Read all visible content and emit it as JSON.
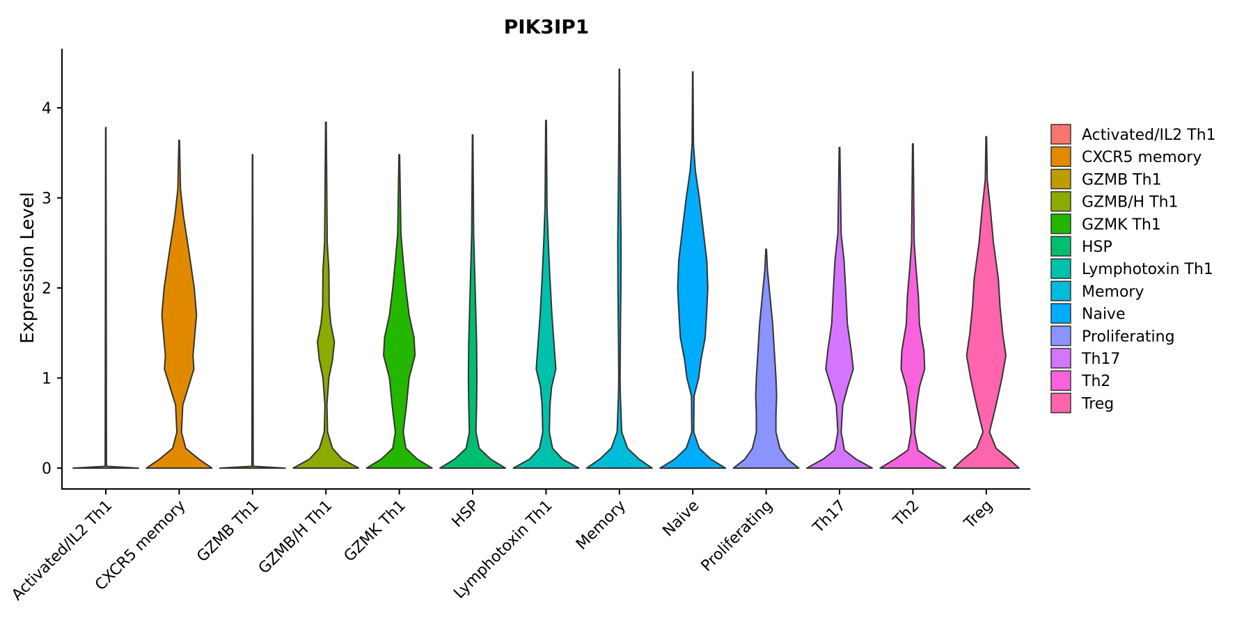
{
  "chart_data": {
    "type": "violin",
    "title": "PIK3IP1",
    "xlabel": "",
    "ylabel": "Expression Level",
    "ylim": [
      -0.22,
      4.7
    ],
    "yticks": [
      "0",
      "1",
      "2",
      "3",
      "4"
    ],
    "grid": false,
    "legend_position": "right",
    "categories": [
      "Activated/IL2 Th1",
      "CXCR5 memory",
      "GZMB Th1",
      "GZMB/H Th1",
      "GZMK Th1",
      "HSP",
      "Lymphotoxin Th1",
      "Memory",
      "Naive",
      "Proliferating",
      "Th17",
      "Th2",
      "Treg"
    ],
    "colors": [
      "#F8766D",
      "#E18A00",
      "#BE9C00",
      "#8CAB00",
      "#24B700",
      "#00BE70",
      "#00C1AB",
      "#00BBDA",
      "#00ACFC",
      "#8B93FF",
      "#D575FE",
      "#F962DD",
      "#FF65AC"
    ],
    "series": [
      {
        "name": "Activated/IL2 Th1",
        "max": 3.78,
        "profile": [
          [
            0,
            1
          ],
          [
            0.02,
            0.02
          ],
          [
            3.78,
            0.006
          ]
        ]
      },
      {
        "name": "CXCR5 memory",
        "max": 3.64,
        "profile": [
          [
            0,
            1
          ],
          [
            0.1,
            0.6
          ],
          [
            0.22,
            0.2
          ],
          [
            0.4,
            0.07
          ],
          [
            0.7,
            0.11
          ],
          [
            0.9,
            0.28
          ],
          [
            1.1,
            0.45
          ],
          [
            1.25,
            0.42
          ],
          [
            1.45,
            0.47
          ],
          [
            1.7,
            0.53
          ],
          [
            2.0,
            0.46
          ],
          [
            2.4,
            0.3
          ],
          [
            2.8,
            0.13
          ],
          [
            3.1,
            0.04
          ],
          [
            3.64,
            0.01
          ]
        ]
      },
      {
        "name": "GZMB Th1",
        "max": 3.48,
        "profile": [
          [
            0,
            1
          ],
          [
            0.02,
            0.02
          ],
          [
            3.48,
            0.006
          ]
        ]
      },
      {
        "name": "GZMB/H Th1",
        "max": 3.84,
        "profile": [
          [
            0,
            1
          ],
          [
            0.1,
            0.5
          ],
          [
            0.22,
            0.2
          ],
          [
            0.4,
            0.05
          ],
          [
            0.7,
            0.03
          ],
          [
            1.0,
            0.09
          ],
          [
            1.2,
            0.2
          ],
          [
            1.4,
            0.26
          ],
          [
            1.6,
            0.15
          ],
          [
            1.8,
            0.1
          ],
          [
            2.2,
            0.09
          ],
          [
            2.5,
            0.04
          ],
          [
            3.84,
            0.01
          ]
        ]
      },
      {
        "name": "GZMK Th1",
        "max": 3.48,
        "profile": [
          [
            0,
            1
          ],
          [
            0.1,
            0.55
          ],
          [
            0.22,
            0.2
          ],
          [
            0.4,
            0.12
          ],
          [
            0.7,
            0.22
          ],
          [
            1.0,
            0.3
          ],
          [
            1.25,
            0.48
          ],
          [
            1.45,
            0.45
          ],
          [
            1.7,
            0.3
          ],
          [
            2.0,
            0.2
          ],
          [
            2.3,
            0.12
          ],
          [
            2.6,
            0.05
          ],
          [
            3.48,
            0.01
          ]
        ]
      },
      {
        "name": "HSP",
        "max": 3.7,
        "profile": [
          [
            0,
            1
          ],
          [
            0.1,
            0.55
          ],
          [
            0.22,
            0.2
          ],
          [
            0.4,
            0.1
          ],
          [
            0.7,
            0.12
          ],
          [
            1.0,
            0.13
          ],
          [
            1.4,
            0.12
          ],
          [
            1.8,
            0.09
          ],
          [
            2.2,
            0.06
          ],
          [
            2.6,
            0.03
          ],
          [
            3.7,
            0.008
          ]
        ]
      },
      {
        "name": "Lymphotoxin Th1",
        "max": 3.86,
        "profile": [
          [
            0,
            1
          ],
          [
            0.1,
            0.5
          ],
          [
            0.22,
            0.2
          ],
          [
            0.4,
            0.1
          ],
          [
            0.7,
            0.12
          ],
          [
            0.9,
            0.17
          ],
          [
            1.1,
            0.3
          ],
          [
            1.35,
            0.25
          ],
          [
            1.7,
            0.18
          ],
          [
            2.1,
            0.12
          ],
          [
            2.5,
            0.07
          ],
          [
            2.9,
            0.03
          ],
          [
            3.86,
            0.01
          ]
        ]
      },
      {
        "name": "Memory",
        "max": 4.43,
        "profile": [
          [
            0,
            1
          ],
          [
            0.1,
            0.6
          ],
          [
            0.22,
            0.25
          ],
          [
            0.4,
            0.07
          ],
          [
            0.8,
            0.03
          ],
          [
            1.0,
            0.02
          ],
          [
            1.5,
            0.03
          ],
          [
            2.0,
            0.045
          ],
          [
            2.5,
            0.05
          ],
          [
            3.0,
            0.035
          ],
          [
            3.6,
            0.02
          ],
          [
            4.43,
            0.006
          ]
        ]
      },
      {
        "name": "Naive",
        "max": 4.4,
        "profile": [
          [
            0,
            1
          ],
          [
            0.1,
            0.55
          ],
          [
            0.22,
            0.2
          ],
          [
            0.4,
            0.03
          ],
          [
            0.8,
            0.04
          ],
          [
            1.0,
            0.18
          ],
          [
            1.2,
            0.25
          ],
          [
            1.45,
            0.38
          ],
          [
            1.7,
            0.42
          ],
          [
            2.0,
            0.46
          ],
          [
            2.3,
            0.43
          ],
          [
            2.7,
            0.3
          ],
          [
            3.0,
            0.2
          ],
          [
            3.3,
            0.08
          ],
          [
            3.6,
            0.02
          ],
          [
            4.4,
            0.006
          ]
        ]
      },
      {
        "name": "Proliferating",
        "max": 2.43,
        "profile": [
          [
            0,
            1
          ],
          [
            0.1,
            0.65
          ],
          [
            0.22,
            0.42
          ],
          [
            0.4,
            0.3
          ],
          [
            0.6,
            0.3
          ],
          [
            0.8,
            0.32
          ],
          [
            1.0,
            0.3
          ],
          [
            1.3,
            0.25
          ],
          [
            1.6,
            0.2
          ],
          [
            1.9,
            0.12
          ],
          [
            2.2,
            0.04
          ],
          [
            2.43,
            0.01
          ]
        ]
      },
      {
        "name": "Th17",
        "max": 3.56,
        "profile": [
          [
            0,
            1
          ],
          [
            0.1,
            0.5
          ],
          [
            0.2,
            0.15
          ],
          [
            0.4,
            0.05
          ],
          [
            0.7,
            0.1
          ],
          [
            0.9,
            0.25
          ],
          [
            1.1,
            0.42
          ],
          [
            1.3,
            0.36
          ],
          [
            1.6,
            0.24
          ],
          [
            1.9,
            0.2
          ],
          [
            2.3,
            0.14
          ],
          [
            2.6,
            0.05
          ],
          [
            3.56,
            0.01
          ]
        ]
      },
      {
        "name": "Th2",
        "max": 3.6,
        "profile": [
          [
            0,
            1
          ],
          [
            0.1,
            0.55
          ],
          [
            0.2,
            0.15
          ],
          [
            0.4,
            0.05
          ],
          [
            0.7,
            0.12
          ],
          [
            0.9,
            0.2
          ],
          [
            1.1,
            0.36
          ],
          [
            1.3,
            0.34
          ],
          [
            1.6,
            0.2
          ],
          [
            1.9,
            0.17
          ],
          [
            2.2,
            0.1
          ],
          [
            2.5,
            0.04
          ],
          [
            3.6,
            0.01
          ]
        ]
      },
      {
        "name": "Treg",
        "max": 3.68,
        "profile": [
          [
            0,
            1
          ],
          [
            0.1,
            0.7
          ],
          [
            0.22,
            0.3
          ],
          [
            0.4,
            0.1
          ],
          [
            0.7,
            0.3
          ],
          [
            1.0,
            0.48
          ],
          [
            1.25,
            0.6
          ],
          [
            1.5,
            0.5
          ],
          [
            1.8,
            0.42
          ],
          [
            2.1,
            0.37
          ],
          [
            2.5,
            0.22
          ],
          [
            2.9,
            0.12
          ],
          [
            3.2,
            0.03
          ],
          [
            3.68,
            0.01
          ]
        ]
      }
    ]
  }
}
